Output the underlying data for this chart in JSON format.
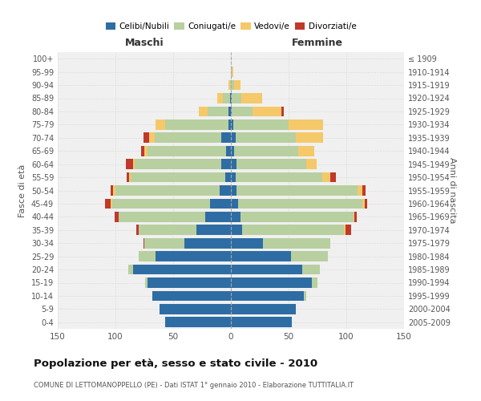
{
  "age_groups": [
    "0-4",
    "5-9",
    "10-14",
    "15-19",
    "20-24",
    "25-29",
    "30-34",
    "35-39",
    "40-44",
    "45-49",
    "50-54",
    "55-59",
    "60-64",
    "65-69",
    "70-74",
    "75-79",
    "80-84",
    "85-89",
    "90-94",
    "95-99",
    "100+"
  ],
  "birth_years": [
    "2005-2009",
    "2000-2004",
    "1995-1999",
    "1990-1994",
    "1985-1989",
    "1980-1984",
    "1975-1979",
    "1970-1974",
    "1965-1969",
    "1960-1964",
    "1955-1959",
    "1950-1954",
    "1945-1949",
    "1940-1944",
    "1935-1939",
    "1930-1934",
    "1925-1929",
    "1920-1924",
    "1915-1919",
    "1910-1914",
    "≤ 1909"
  ],
  "maschi": {
    "celibi": [
      57,
      62,
      68,
      72,
      85,
      65,
      40,
      30,
      22,
      18,
      10,
      5,
      8,
      4,
      8,
      2,
      2,
      1,
      0,
      0,
      0
    ],
    "coniugati": [
      0,
      0,
      0,
      2,
      4,
      15,
      35,
      50,
      75,
      85,
      90,
      82,
      75,
      68,
      58,
      55,
      18,
      6,
      1,
      0,
      0
    ],
    "vedovi": [
      0,
      0,
      0,
      0,
      0,
      0,
      0,
      0,
      0,
      1,
      2,
      1,
      2,
      3,
      5,
      8,
      8,
      5,
      1,
      0,
      0
    ],
    "divorziati": [
      0,
      0,
      0,
      0,
      0,
      0,
      1,
      2,
      4,
      5,
      2,
      2,
      6,
      3,
      5,
      0,
      0,
      0,
      0,
      0,
      0
    ]
  },
  "femmine": {
    "nubili": [
      53,
      56,
      63,
      70,
      62,
      52,
      28,
      10,
      8,
      6,
      5,
      4,
      5,
      3,
      4,
      2,
      1,
      1,
      0,
      0,
      0
    ],
    "coniugate": [
      0,
      0,
      2,
      5,
      15,
      32,
      58,
      88,
      98,
      108,
      105,
      75,
      60,
      55,
      52,
      48,
      18,
      8,
      3,
      1,
      0
    ],
    "vedove": [
      0,
      0,
      0,
      0,
      0,
      0,
      0,
      1,
      1,
      2,
      4,
      7,
      9,
      14,
      24,
      30,
      25,
      18,
      5,
      1,
      0
    ],
    "divorziate": [
      0,
      0,
      0,
      0,
      0,
      0,
      0,
      5,
      2,
      2,
      3,
      5,
      0,
      0,
      0,
      0,
      2,
      0,
      0,
      0,
      0
    ]
  },
  "colors": {
    "celibi": "#2e6da4",
    "coniugati": "#b8cfa0",
    "vedovi": "#f5c96a",
    "divorziati": "#c0392b"
  },
  "xlim": 150,
  "title": "Popolazione per età, sesso e stato civile - 2010",
  "subtitle": "COMUNE DI LETTOMANOPPELLO (PE) - Dati ISTAT 1° gennaio 2010 - Elaborazione TUTTITALIA.IT",
  "ylabel_left": "Fasce di età",
  "ylabel_right": "Anni di nascita",
  "label_maschi": "Maschi",
  "label_femmine": "Femmine",
  "bg_color": "#ffffff",
  "plot_bg": "#f0f0f0",
  "grid_color": "#dddddd",
  "legend": [
    "Celibi/Nubili",
    "Coniugati/e",
    "Vedovi/e",
    "Divorziati/e"
  ]
}
